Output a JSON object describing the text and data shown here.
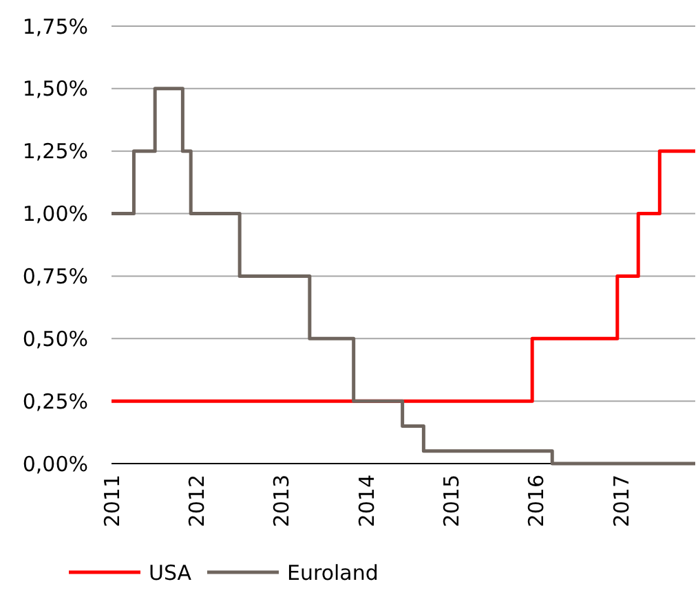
{
  "chart_data": {
    "type": "step",
    "xlim": [
      "2011-01-01",
      "2017-11-15"
    ],
    "xticks": [
      {
        "value": "2011-01-01",
        "label": "2011"
      },
      {
        "value": "2012-01-01",
        "label": "2012"
      },
      {
        "value": "2013-01-01",
        "label": "2013"
      },
      {
        "value": "2014-01-01",
        "label": "2014"
      },
      {
        "value": "2015-01-01",
        "label": "2015"
      },
      {
        "value": "2016-01-01",
        "label": "2016"
      },
      {
        "value": "2017-01-01",
        "label": "2017"
      }
    ],
    "ylim": [
      0,
      1.75
    ],
    "yticks": [
      {
        "value": 0,
        "label": "0,00%"
      },
      {
        "value": 0.25,
        "label": "0,25%"
      },
      {
        "value": 0.5,
        "label": "0,50%"
      },
      {
        "value": 0.75,
        "label": "0,75%"
      },
      {
        "value": 1,
        "label": "1,00%"
      },
      {
        "value": 1.25,
        "label": "1,25%"
      },
      {
        "value": 1.5,
        "label": "1,50%"
      },
      {
        "value": 1.75,
        "label": "1,75%"
      }
    ],
    "grid": "y",
    "legend": "bottom",
    "line_style": "solid",
    "series": [
      {
        "name": "USA",
        "color": "#ff0000",
        "x": [
          "2011-01-01",
          "2015-12-15",
          "2016-12-15",
          "2017-03-15",
          "2017-06-15",
          "2017-11-15"
        ],
        "values": [
          0.25,
          0.5,
          0.75,
          1,
          1.25,
          1.25
        ]
      },
      {
        "name": "Euroland",
        "color": "#6f655e",
        "x": [
          "2011-01-01",
          "2011-04-07",
          "2011-07-07",
          "2011-11-03",
          "2011-12-08",
          "2012-07-05",
          "2013-05-02",
          "2013-11-07",
          "2014-06-05",
          "2014-09-04",
          "2016-03-10",
          "2017-11-15"
        ],
        "values": [
          1,
          1.25,
          1.5,
          1.25,
          1,
          0.75,
          0.5,
          0.25,
          0.15,
          0.05,
          0,
          0
        ]
      }
    ]
  }
}
